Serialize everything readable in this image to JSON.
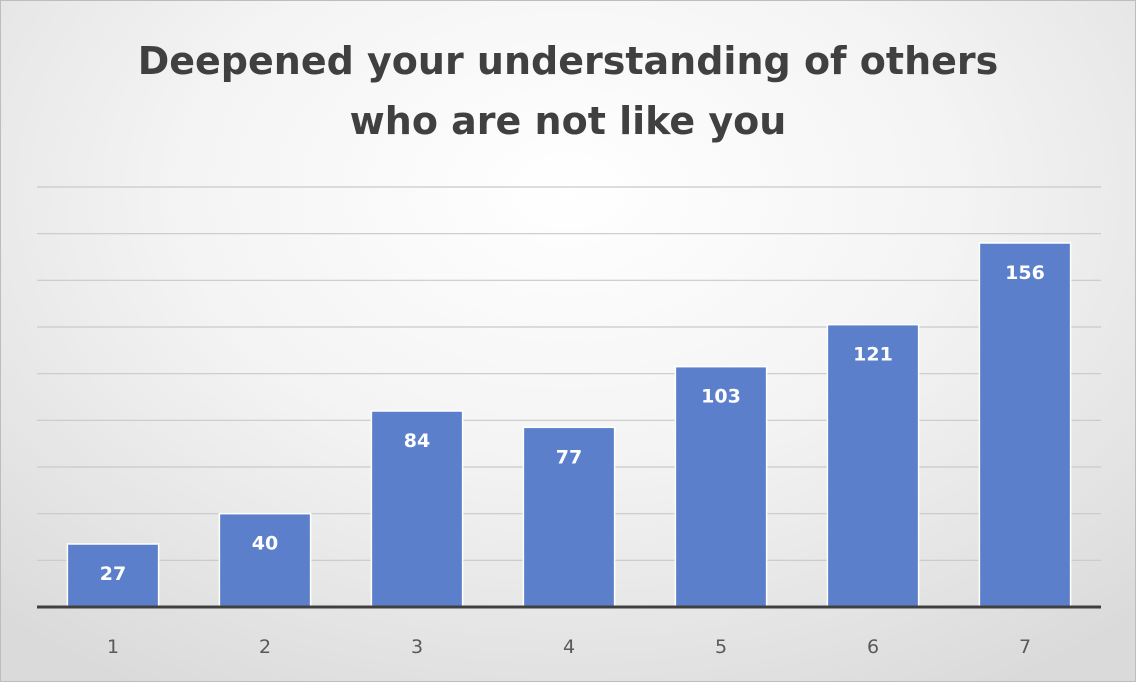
{
  "chart_data": {
    "type": "bar",
    "title_lines": [
      "Deepened your understanding of others",
      "who are not like you"
    ],
    "categories": [
      "1",
      "2",
      "3",
      "4",
      "5",
      "6",
      "7"
    ],
    "values": [
      27,
      40,
      84,
      77,
      103,
      121,
      156
    ],
    "xlabel": "",
    "ylabel": "",
    "ylim": [
      0,
      180
    ],
    "gridline_step": 20,
    "grid": true,
    "legend": "none",
    "data_labels": "inside-end",
    "bar_color": "#5b7fcb"
  }
}
